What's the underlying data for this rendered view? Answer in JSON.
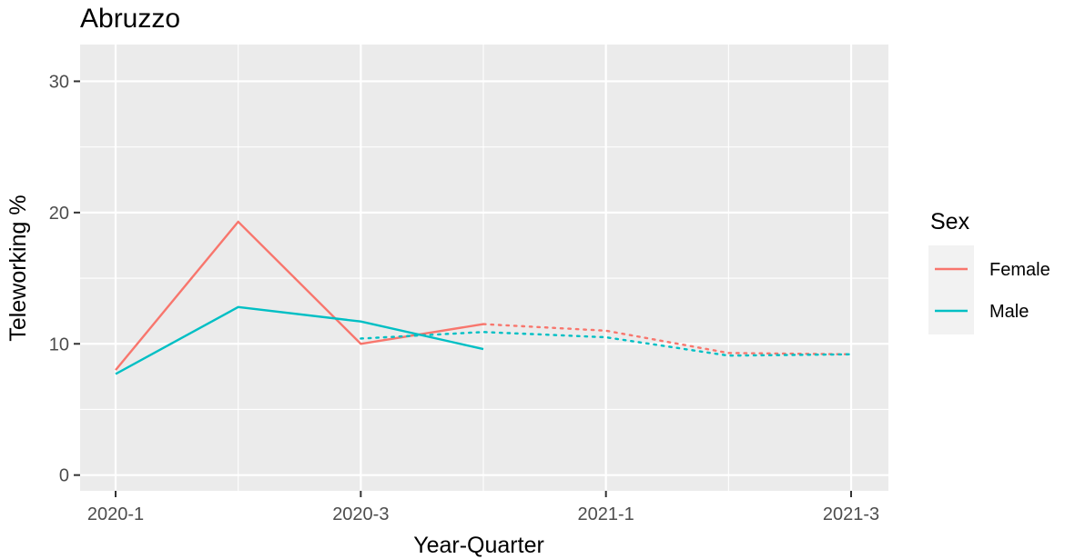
{
  "chart_data": {
    "type": "line",
    "title": "Abruzzo",
    "xlabel": "Year-Quarter",
    "ylabel": "Teleworking %",
    "x": [
      "2020-1",
      "2020-2",
      "2020-3",
      "2020-4",
      "2021-1",
      "2021-2",
      "2021-3"
    ],
    "x_tick_labels": [
      "2020-1",
      "2020-3",
      "2021-1",
      "2021-3"
    ],
    "y_ticks": [
      0,
      10,
      20,
      30
    ],
    "ylim": [
      -1.2,
      32.8
    ],
    "grid": true,
    "legend": {
      "title": "Sex",
      "position": "right"
    },
    "series": [
      {
        "name": "Female",
        "color": "#F8766D",
        "linestyle": "solid",
        "x": [
          "2020-1",
          "2020-2",
          "2020-3",
          "2020-4"
        ],
        "values": [
          8.0,
          19.3,
          10.0,
          11.5
        ]
      },
      {
        "name": "Male",
        "color": "#00BFC4",
        "linestyle": "solid",
        "x": [
          "2020-1",
          "2020-2",
          "2020-3",
          "2020-4"
        ],
        "values": [
          7.7,
          12.8,
          11.7,
          9.6
        ]
      },
      {
        "name": "Female",
        "color": "#F8766D",
        "linestyle": "dotted",
        "x": [
          "2020-4",
          "2021-1",
          "2021-2",
          "2021-3"
        ],
        "values": [
          11.5,
          11.0,
          9.3,
          9.2
        ]
      },
      {
        "name": "Male",
        "color": "#00BFC4",
        "linestyle": "dotted",
        "x": [
          "2020-3",
          "2020-4",
          "2021-1",
          "2021-2",
          "2021-3"
        ],
        "values": [
          10.4,
          10.9,
          10.5,
          9.1,
          9.2
        ]
      }
    ],
    "legend_entries": [
      {
        "label": "Female",
        "color": "#F8766D"
      },
      {
        "label": "Male",
        "color": "#00BFC4"
      }
    ]
  }
}
